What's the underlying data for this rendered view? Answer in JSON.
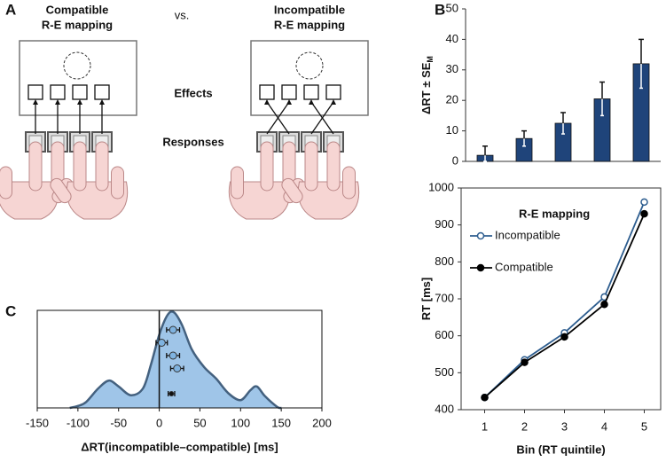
{
  "diagram": {
    "panel": "A",
    "left_title": [
      "Compatible",
      "R-E mapping"
    ],
    "vs": "vs.",
    "right_title": [
      "Incompatible",
      "R-E mapping"
    ],
    "effects": "Effects",
    "responses": "Responses"
  },
  "chart_data": [
    {
      "type": "bar",
      "panel": "B",
      "ylabel": "ΔRT ± SE",
      "ylabel_sub": "M",
      "categories": [
        null,
        null,
        null,
        null,
        null
      ],
      "values": [
        2,
        7.5,
        12.5,
        20.5,
        32
      ],
      "errors": [
        3,
        2.5,
        3.5,
        5.5,
        8
      ],
      "color": "#1f447a",
      "ylim": [
        0,
        50
      ],
      "yticks": [
        0,
        10,
        20,
        30,
        40,
        50
      ]
    },
    {
      "type": "line",
      "xlabel": "Bin (RT quintile)",
      "ylabel": "RT [ms]",
      "categories": [
        "1",
        "2",
        "3",
        "4",
        "5"
      ],
      "legend_title": "R-E mapping",
      "series": [
        {
          "name": "Incompatible",
          "color": "#2d5d8f",
          "marker": "open",
          "values": [
            433,
            535,
            608,
            705,
            962
          ]
        },
        {
          "name": "Compatible",
          "color": "#000000",
          "marker": "filled",
          "values": [
            433,
            528,
            597,
            685,
            930
          ]
        }
      ],
      "ylim": [
        400,
        1000
      ],
      "yticks": [
        400,
        500,
        600,
        700,
        800,
        900,
        1000
      ]
    },
    {
      "type": "density",
      "panel": "C",
      "xlabel": "ΔRT(incompatible–compatible) [ms]",
      "x": [
        -110,
        -100,
        -90,
        -75,
        -62,
        -50,
        -35,
        -20,
        -10,
        0,
        10,
        18,
        28,
        40,
        55,
        70,
        85,
        100,
        112,
        120,
        130,
        145,
        150
      ],
      "values": [
        0,
        0.02,
        0.06,
        0.2,
        0.28,
        0.22,
        0.13,
        0.2,
        0.45,
        0.75,
        0.95,
        0.98,
        0.85,
        0.6,
        0.42,
        0.3,
        0.15,
        0.08,
        0.18,
        0.22,
        0.12,
        0.01,
        0
      ],
      "color": "#9fc5e8",
      "line_color": "#44617f",
      "xlim": [
        -150,
        200
      ],
      "xticks": [
        -150,
        -100,
        -50,
        0,
        50,
        100,
        150,
        200
      ],
      "ylim": [
        0,
        1
      ],
      "reference_line": 0,
      "points": [
        {
          "color": "#7fb3e0",
          "values": [
            17,
            3,
            17,
            22
          ],
          "errors": [
            8,
            7,
            8,
            8
          ]
        },
        {
          "color": "#111111",
          "values": [
            15
          ],
          "errors": [
            4
          ]
        }
      ]
    }
  ]
}
